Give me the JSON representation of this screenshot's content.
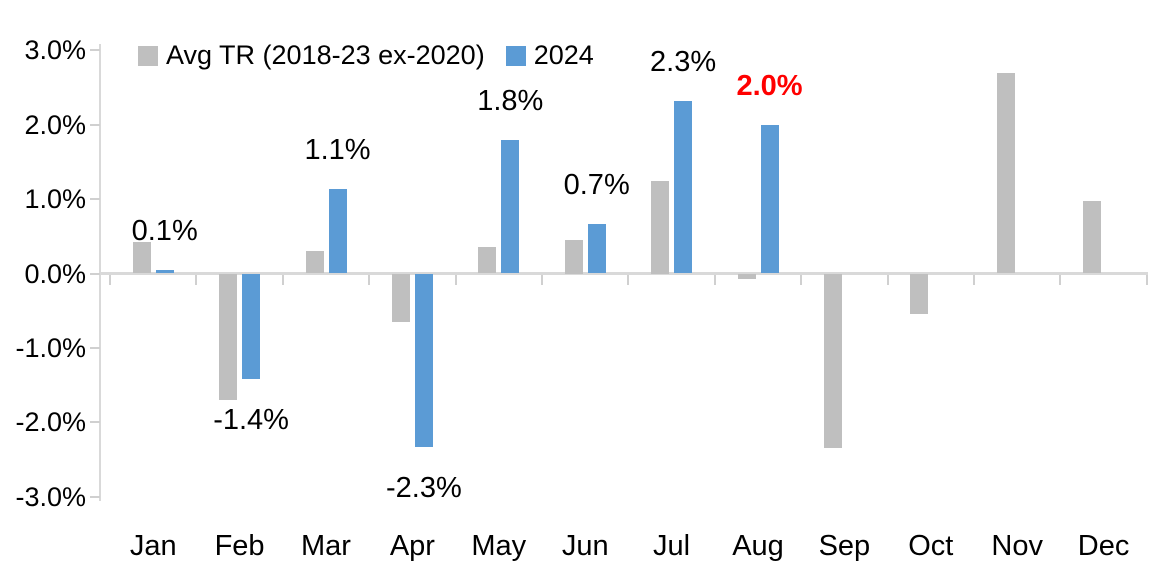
{
  "chart_data": {
    "type": "bar",
    "title": "",
    "xlabel": "",
    "ylabel": "",
    "categories": [
      "Jan",
      "Feb",
      "Mar",
      "Apr",
      "May",
      "Jun",
      "Jul",
      "Aug",
      "Sep",
      "Oct",
      "Nov",
      "Dec"
    ],
    "series": [
      {
        "name": "Avg TR (2018-23 ex-2020)",
        "color": "#BFBFBF",
        "values": [
          0.42,
          -1.7,
          0.3,
          -0.65,
          0.36,
          0.45,
          1.25,
          -0.07,
          -2.35,
          -0.55,
          2.7,
          0.97
        ]
      },
      {
        "name": "2024",
        "color": "#5B9BD5",
        "values": [
          0.05,
          -1.42,
          1.13,
          -2.33,
          1.8,
          0.67,
          2.32,
          2.0,
          null,
          null,
          null,
          null
        ],
        "data_labels": [
          {
            "text": "0.1%",
            "color": "#000000",
            "bold": false
          },
          {
            "text": "-1.4%",
            "color": "#000000",
            "bold": false
          },
          {
            "text": "1.1%",
            "color": "#000000",
            "bold": false
          },
          {
            "text": "-2.3%",
            "color": "#000000",
            "bold": false
          },
          {
            "text": "1.8%",
            "color": "#000000",
            "bold": false
          },
          {
            "text": "0.7%",
            "color": "#000000",
            "bold": false
          },
          {
            "text": "2.3%",
            "color": "#000000",
            "bold": false
          },
          {
            "text": "2.0%",
            "color": "#FF0000",
            "bold": true
          },
          null,
          null,
          null,
          null
        ]
      }
    ],
    "ylim": [
      -3,
      3
    ],
    "y_tick_values": [
      3,
      2,
      1,
      0,
      -1,
      -2,
      -3
    ],
    "y_tick_labels": [
      "3.0%",
      "2.0%",
      "1.0%",
      "0.0%",
      "-1.0%",
      "-2.0%",
      "-3.0%"
    ],
    "grid": "off",
    "legend_position": "top-left"
  },
  "colors": {
    "axis_line": "#D9D9D9",
    "tick_mark": "#D0D0D0",
    "label_default": "#000000",
    "label_highlight": "#FF0000"
  }
}
